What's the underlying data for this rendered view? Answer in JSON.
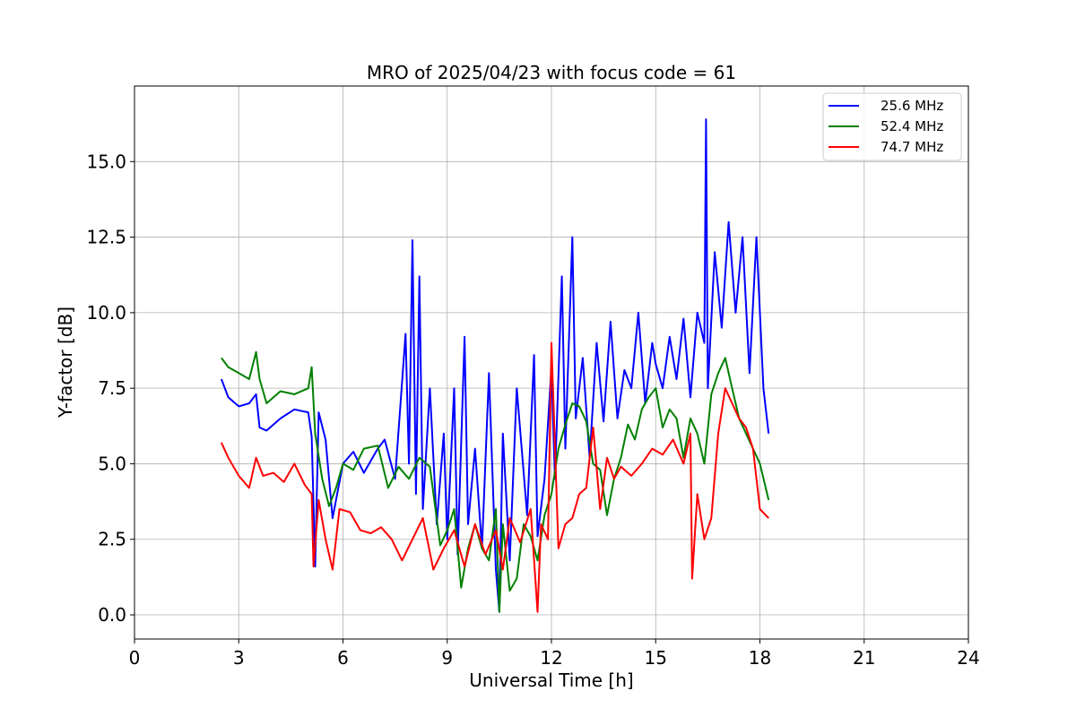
{
  "chart_data": {
    "type": "line",
    "title": "MRO of 2025/04/23 with focus code = 61",
    "xlabel": "Universal Time [h]",
    "ylabel": "Y-factor [dB]",
    "xlim": [
      0,
      24
    ],
    "ylim": [
      -0.8,
      17.5
    ],
    "xticks": [
      0,
      3,
      6,
      9,
      12,
      15,
      18,
      21,
      24
    ],
    "yticks": [
      0.0,
      2.5,
      5.0,
      7.5,
      10.0,
      12.5,
      15.0
    ],
    "xtick_labels": [
      "0",
      "3",
      "6",
      "9",
      "12",
      "15",
      "18",
      "21",
      "24"
    ],
    "ytick_labels": [
      "0.0",
      "2.5",
      "5.0",
      "7.5",
      "10.0",
      "12.5",
      "15.0"
    ],
    "grid": true,
    "legend_position": "top-right",
    "series": [
      {
        "name": "25.6 MHz",
        "color": "#0000ff",
        "x": [
          2.5,
          2.7,
          3.0,
          3.3,
          3.5,
          3.6,
          3.8,
          4.2,
          4.6,
          5.0,
          5.1,
          5.2,
          5.3,
          5.5,
          5.7,
          6.0,
          6.3,
          6.6,
          7.0,
          7.2,
          7.5,
          7.8,
          7.9,
          8.0,
          8.1,
          8.2,
          8.3,
          8.5,
          8.7,
          8.9,
          9.0,
          9.2,
          9.3,
          9.5,
          9.6,
          9.8,
          10.0,
          10.2,
          10.4,
          10.5,
          10.6,
          10.8,
          11.0,
          11.3,
          11.5,
          11.6,
          11.8,
          12.0,
          12.1,
          12.3,
          12.4,
          12.6,
          12.7,
          12.9,
          13.1,
          13.3,
          13.5,
          13.7,
          13.9,
          14.1,
          14.3,
          14.5,
          14.7,
          14.9,
          15.0,
          15.2,
          15.4,
          15.6,
          15.8,
          16.0,
          16.2,
          16.4,
          16.45,
          16.5,
          16.7,
          16.9,
          17.1,
          17.3,
          17.5,
          17.7,
          17.9,
          18.1,
          18.25
        ],
        "y": [
          7.8,
          7.2,
          6.9,
          7.0,
          7.3,
          6.2,
          6.1,
          6.5,
          6.8,
          6.7,
          5.9,
          1.6,
          6.7,
          5.8,
          3.2,
          5.0,
          5.4,
          4.7,
          5.5,
          5.8,
          4.5,
          9.3,
          5.0,
          12.4,
          4.0,
          11.2,
          3.5,
          7.5,
          3.0,
          6.0,
          2.5,
          7.5,
          2.0,
          9.2,
          3.0,
          5.5,
          2.2,
          8.0,
          1.5,
          0.1,
          6.0,
          1.8,
          7.5,
          3.3,
          8.6,
          2.6,
          4.5,
          8.2,
          4.5,
          11.2,
          5.5,
          12.5,
          6.5,
          8.5,
          5.2,
          9.0,
          6.4,
          9.7,
          6.5,
          8.1,
          7.5,
          10.0,
          7.0,
          9.0,
          8.3,
          7.5,
          9.2,
          7.8,
          9.8,
          7.2,
          10.0,
          9.0,
          16.4,
          7.5,
          12.0,
          9.5,
          13.0,
          10.0,
          12.5,
          8.0,
          12.5,
          7.5,
          6.0
        ]
      },
      {
        "name": "52.4 MHz",
        "color": "#008000",
        "x": [
          2.5,
          2.7,
          3.0,
          3.3,
          3.5,
          3.6,
          3.8,
          4.2,
          4.6,
          5.0,
          5.1,
          5.2,
          5.4,
          5.6,
          5.8,
          6.0,
          6.3,
          6.6,
          7.0,
          7.3,
          7.6,
          7.9,
          8.2,
          8.5,
          8.8,
          9.0,
          9.2,
          9.4,
          9.6,
          9.8,
          10.0,
          10.2,
          10.4,
          10.5,
          10.6,
          10.8,
          11.0,
          11.2,
          11.4,
          11.6,
          11.8,
          12.0,
          12.2,
          12.4,
          12.6,
          12.8,
          13.0,
          13.2,
          13.4,
          13.6,
          13.8,
          14.0,
          14.2,
          14.4,
          14.6,
          14.8,
          15.0,
          15.2,
          15.4,
          15.6,
          15.8,
          16.0,
          16.2,
          16.4,
          16.6,
          16.8,
          17.0,
          17.2,
          17.4,
          17.6,
          17.8,
          18.0,
          18.25
        ],
        "y": [
          8.5,
          8.2,
          8.0,
          7.8,
          8.7,
          7.8,
          7.0,
          7.4,
          7.3,
          7.5,
          8.2,
          6.0,
          4.5,
          3.6,
          4.2,
          5.0,
          4.8,
          5.5,
          5.6,
          4.2,
          4.9,
          4.5,
          5.2,
          4.9,
          2.3,
          2.8,
          3.5,
          0.9,
          2.2,
          3.0,
          2.2,
          1.8,
          3.5,
          0.1,
          3.0,
          0.8,
          1.2,
          3.0,
          2.6,
          1.8,
          3.3,
          4.0,
          5.5,
          6.3,
          7.0,
          6.9,
          6.4,
          5.0,
          4.8,
          3.3,
          4.5,
          5.2,
          6.3,
          5.8,
          6.8,
          7.2,
          7.5,
          6.2,
          6.8,
          6.5,
          5.2,
          6.5,
          6.0,
          5.0,
          7.3,
          8.0,
          8.5,
          7.5,
          6.5,
          6.0,
          5.5,
          5.0,
          3.8
        ]
      },
      {
        "name": "74.7 MHz",
        "color": "#ff0000",
        "x": [
          2.5,
          2.7,
          3.0,
          3.3,
          3.5,
          3.7,
          4.0,
          4.3,
          4.6,
          4.9,
          5.1,
          5.15,
          5.3,
          5.5,
          5.7,
          5.9,
          6.2,
          6.5,
          6.8,
          7.1,
          7.4,
          7.7,
          8.0,
          8.3,
          8.6,
          8.9,
          9.2,
          9.5,
          9.8,
          10.1,
          10.4,
          10.6,
          10.8,
          11.1,
          11.4,
          11.6,
          11.7,
          11.9,
          12.0,
          12.2,
          12.4,
          12.6,
          12.8,
          13.0,
          13.2,
          13.4,
          13.6,
          13.8,
          14.0,
          14.3,
          14.6,
          14.9,
          15.2,
          15.5,
          15.8,
          16.0,
          16.05,
          16.2,
          16.4,
          16.6,
          16.8,
          17.0,
          17.2,
          17.4,
          17.6,
          17.8,
          18.0,
          18.25
        ],
        "y": [
          5.7,
          5.2,
          4.6,
          4.2,
          5.2,
          4.6,
          4.7,
          4.4,
          5.0,
          4.3,
          4.0,
          1.6,
          3.8,
          2.5,
          1.5,
          3.5,
          3.4,
          2.8,
          2.7,
          2.9,
          2.5,
          1.8,
          2.5,
          3.2,
          1.5,
          2.2,
          2.8,
          1.6,
          3.0,
          2.0,
          2.8,
          1.5,
          3.2,
          2.4,
          3.5,
          0.1,
          3.0,
          2.5,
          9.0,
          2.2,
          3.0,
          3.2,
          4.0,
          4.2,
          6.2,
          3.5,
          5.2,
          4.5,
          4.9,
          4.6,
          5.0,
          5.5,
          5.3,
          5.8,
          5.0,
          6.0,
          1.2,
          4.0,
          2.5,
          3.2,
          6.0,
          7.5,
          7.0,
          6.5,
          6.2,
          5.5,
          3.5,
          3.2
        ]
      }
    ]
  }
}
